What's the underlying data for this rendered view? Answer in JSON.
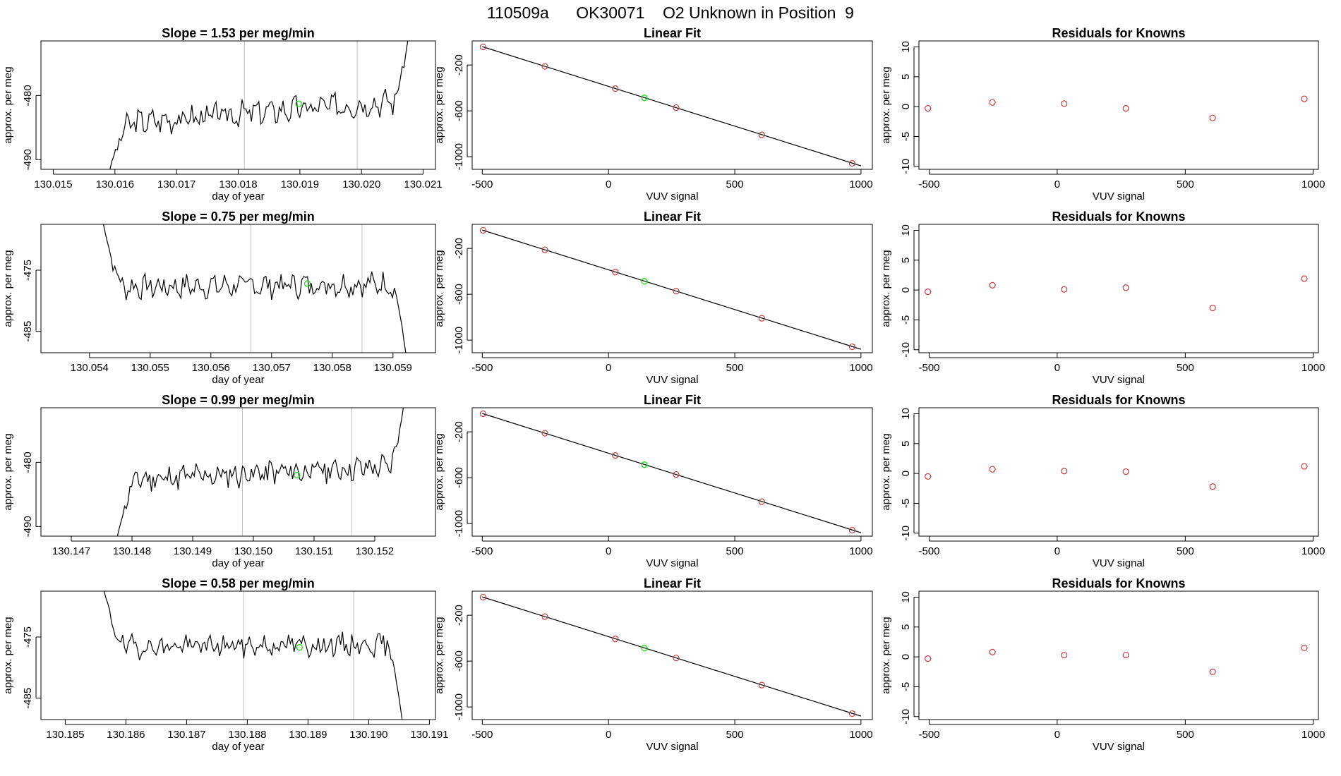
{
  "page_title": "110509a      OK30071    O2 Unknown in Position  9",
  "colors": {
    "line": "#000000",
    "frame": "#000000",
    "vline": "#bebebe",
    "known_point": "#cd3b3b",
    "unknown_point": "#00e000"
  },
  "chart_data": [
    {
      "type": "line",
      "title": "Slope =  1.53  per meg/min",
      "xlabel": "day of year",
      "ylabel": "approx. per meg",
      "x_ticks": [
        "130.015",
        "130.016",
        "130.017",
        "130.018",
        "130.019",
        "130.020",
        "130.021"
      ],
      "y_ticks": [
        "-480",
        "-490"
      ],
      "x_range": [
        130.0148,
        130.0212
      ],
      "y_range": [
        -491.5,
        -471.5
      ],
      "vlines": [
        130.0181,
        130.01993
      ],
      "series": {
        "x_start": 130.01592,
        "x_end": 130.02075,
        "baseline": -484.5,
        "drift": 3.8,
        "amp": 1.6,
        "seed": 3,
        "start": -491.5,
        "end": -471.5
      },
      "unknown_point": {
        "x": 130.01898,
        "y": -481.3
      }
    },
    {
      "type": "scatter",
      "title": "Linear Fit",
      "xlabel": "VUV signal",
      "ylabel": "approx. per meg",
      "x_ticks": [
        "-500",
        "0",
        "500",
        "1000"
      ],
      "y_ticks": [
        "-200",
        "-600",
        "-1000"
      ],
      "x_range": [
        -540,
        1045
      ],
      "y_range": [
        -1110,
        10
      ],
      "fit_line": {
        "x": [
          -500,
          1000
        ],
        "y": [
          -40,
          -1080
        ]
      },
      "known_points": {
        "x": [
          -497,
          -252,
          27,
          268,
          607,
          965
        ],
        "y": [
          -42,
          -212,
          -406,
          -572,
          -809,
          -1058
        ]
      },
      "unknown_point": {
        "x": 142,
        "y": -487
      }
    },
    {
      "type": "scatter",
      "title": "Residuals for Knowns",
      "xlabel": "VUV signal",
      "ylabel": "approx. per meg",
      "x_ticks": [
        "-500",
        "0",
        "500",
        "1000"
      ],
      "y_ticks": [
        "10",
        "5",
        "0",
        "-5",
        "-10"
      ],
      "x_range": [
        -540,
        1020
      ],
      "y_range": [
        -10.5,
        11
      ],
      "known_points": {
        "x": [
          -505,
          -253,
          27,
          268,
          607,
          965
        ],
        "y": [
          -0.3,
          0.7,
          0.5,
          -0.3,
          -1.9,
          1.3
        ]
      }
    },
    {
      "type": "line",
      "title": "Slope =  0.75  per meg/min",
      "xlabel": "day of year",
      "ylabel": "approx. per meg",
      "x_ticks": [
        "130.054",
        "130.055",
        "130.056",
        "130.057",
        "130.058",
        "130.059"
      ],
      "y_ticks": [
        "-475",
        "-485"
      ],
      "x_range": [
        130.0532,
        130.0597
      ],
      "y_range": [
        -488.5,
        -467.5
      ],
      "vlines": [
        130.05666,
        130.05849
      ],
      "series": {
        "x_start": 130.05423,
        "x_end": 130.05921,
        "baseline": -477.8,
        "drift": 0.6,
        "amp": 1.6,
        "seed": 7,
        "start": -467.5,
        "end": -488.5
      },
      "unknown_point": {
        "x": 130.05759,
        "y": -477.2
      }
    },
    {
      "type": "scatter",
      "title": "Linear Fit",
      "xlabel": "VUV signal",
      "ylabel": "approx. per meg",
      "x_ticks": [
        "-500",
        "0",
        "500",
        "1000"
      ],
      "y_ticks": [
        "-200",
        "-600",
        "-1000"
      ],
      "x_range": [
        -540,
        1045
      ],
      "y_range": [
        -1110,
        10
      ],
      "fit_line": {
        "x": [
          -500,
          1000
        ],
        "y": [
          -40,
          -1080
        ]
      },
      "known_points": {
        "x": [
          -497,
          -252,
          27,
          268,
          607,
          965
        ],
        "y": [
          -42,
          -212,
          -406,
          -572,
          -809,
          -1058
        ]
      },
      "unknown_point": {
        "x": 142,
        "y": -487
      }
    },
    {
      "type": "scatter",
      "title": "Residuals for Knowns",
      "xlabel": "VUV signal",
      "ylabel": "approx. per meg",
      "x_ticks": [
        "-500",
        "0",
        "500",
        "1000"
      ],
      "y_ticks": [
        "10",
        "5",
        "0",
        "-5",
        "-10"
      ],
      "x_range": [
        -540,
        1020
      ],
      "y_range": [
        -10.5,
        11
      ],
      "known_points": {
        "x": [
          -505,
          -253,
          27,
          268,
          607,
          965
        ],
        "y": [
          -0.3,
          0.8,
          0.1,
          0.4,
          -3.0,
          1.9
        ]
      }
    },
    {
      "type": "line",
      "title": "Slope =  0.99  per meg/min",
      "xlabel": "day of year",
      "ylabel": "approx. per meg",
      "x_ticks": [
        "130.147",
        "130.148",
        "130.149",
        "130.150",
        "130.151",
        "130.152"
      ],
      "y_ticks": [
        "-480",
        "-490"
      ],
      "x_range": [
        130.1465,
        130.153
      ],
      "y_range": [
        -491.5,
        -471.5
      ],
      "vlines": [
        130.14982,
        130.15162
      ],
      "series": {
        "x_start": 130.14776,
        "x_end": 130.15247,
        "baseline": -482.8,
        "drift": 2.2,
        "amp": 1.6,
        "seed": 11,
        "start": -491.5,
        "end": -471.5
      },
      "unknown_point": {
        "x": 130.15072,
        "y": -482.0
      }
    },
    {
      "type": "scatter",
      "title": "Linear Fit",
      "xlabel": "VUV signal",
      "ylabel": "approx. per meg",
      "x_ticks": [
        "-500",
        "0",
        "500",
        "1000"
      ],
      "y_ticks": [
        "-200",
        "-600",
        "-1000"
      ],
      "x_range": [
        -540,
        1045
      ],
      "y_range": [
        -1110,
        10
      ],
      "fit_line": {
        "x": [
          -500,
          1000
        ],
        "y": [
          -40,
          -1080
        ]
      },
      "known_points": {
        "x": [
          -497,
          -252,
          27,
          268,
          607,
          965
        ],
        "y": [
          -42,
          -212,
          -406,
          -572,
          -809,
          -1058
        ]
      },
      "unknown_point": {
        "x": 142,
        "y": -487
      }
    },
    {
      "type": "scatter",
      "title": "Residuals for Knowns",
      "xlabel": "VUV signal",
      "ylabel": "approx. per meg",
      "x_ticks": [
        "-500",
        "0",
        "500",
        "1000"
      ],
      "y_ticks": [
        "10",
        "5",
        "0",
        "-5",
        "-10"
      ],
      "x_range": [
        -540,
        1020
      ],
      "y_range": [
        -10.5,
        11
      ],
      "known_points": {
        "x": [
          -505,
          -253,
          27,
          268,
          607,
          965
        ],
        "y": [
          -0.5,
          0.7,
          0.4,
          0.3,
          -2.2,
          1.2
        ]
      }
    },
    {
      "type": "line",
      "title": "Slope =  0.58  per meg/min",
      "xlabel": "day of year",
      "ylabel": "approx. per meg",
      "x_ticks": [
        "130.185",
        "130.186",
        "130.187",
        "130.188",
        "130.189",
        "130.190",
        "130.191"
      ],
      "y_ticks": [
        "-475",
        "-485"
      ],
      "x_range": [
        130.1846,
        130.1911
      ],
      "y_range": [
        -488.5,
        -467.5
      ],
      "vlines": [
        130.18794,
        130.18975
      ],
      "series": {
        "x_start": 130.18564,
        "x_end": 130.19055,
        "baseline": -476.6,
        "drift": 0.4,
        "amp": 1.5,
        "seed": 19,
        "start": -467.5,
        "end": -488.5
      },
      "unknown_point": {
        "x": 130.18886,
        "y": -476.7
      }
    },
    {
      "type": "scatter",
      "title": "Linear Fit",
      "xlabel": "VUV signal",
      "ylabel": "approx. per meg",
      "x_ticks": [
        "-500",
        "0",
        "500",
        "1000"
      ],
      "y_ticks": [
        "-200",
        "-600",
        "-1000"
      ],
      "x_range": [
        -540,
        1045
      ],
      "y_range": [
        -1110,
        10
      ],
      "fit_line": {
        "x": [
          -500,
          1000
        ],
        "y": [
          -40,
          -1080
        ]
      },
      "known_points": {
        "x": [
          -497,
          -252,
          27,
          268,
          607,
          965
        ],
        "y": [
          -42,
          -212,
          -406,
          -572,
          -809,
          -1058
        ]
      },
      "unknown_point": {
        "x": 142,
        "y": -487
      }
    },
    {
      "type": "scatter",
      "title": "Residuals for Knowns",
      "xlabel": "VUV signal",
      "ylabel": "approx. per meg",
      "x_ticks": [
        "-500",
        "0",
        "500",
        "1000"
      ],
      "y_ticks": [
        "10",
        "5",
        "0",
        "-5",
        "-10"
      ],
      "x_range": [
        -540,
        1020
      ],
      "y_range": [
        -10.5,
        11
      ],
      "known_points": {
        "x": [
          -505,
          -253,
          27,
          268,
          607,
          965
        ],
        "y": [
          -0.3,
          0.8,
          0.3,
          0.3,
          -2.5,
          1.5
        ]
      }
    }
  ]
}
